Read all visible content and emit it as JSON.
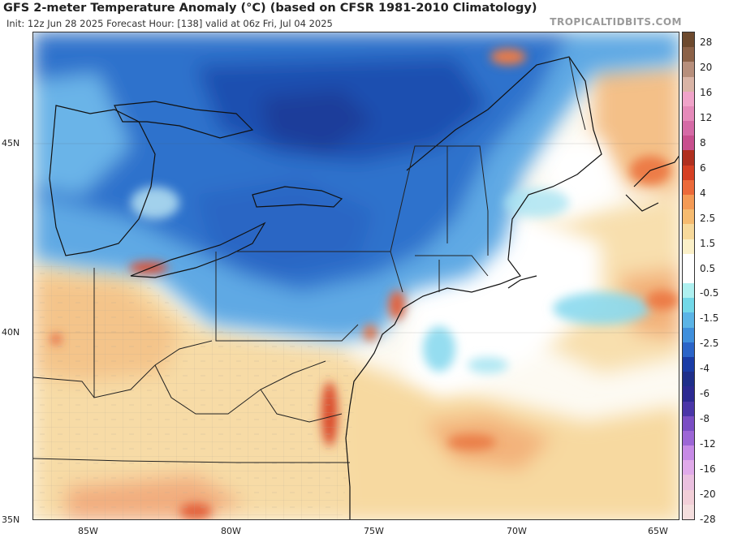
{
  "header": {
    "title": "GFS 2-meter Temperature Anomaly (°C) (based on CFSR 1981-2010 Climatology)",
    "subtitle": "Init: 12z Jun 28 2025   Forecast Hour: [138]   valid at 06z Fri, Jul 04 2025",
    "brand": "TROPICALTIDBITS.COM"
  },
  "axes": {
    "lat_labels": [
      "45N",
      "40N",
      "35N"
    ],
    "lon_labels": [
      "85W",
      "80W",
      "75W",
      "70W",
      "65W"
    ]
  },
  "colorbar": {
    "labels": [
      "28",
      "20",
      "16",
      "12",
      "8",
      "6",
      "4",
      "2.5",
      "1.5",
      "0.5",
      "-0.5",
      "-1.5",
      "-2.5",
      "-4",
      "-6",
      "-8",
      "-12",
      "-16",
      "-20",
      "-28"
    ],
    "colors": [
      "#6e4a2e",
      "#8c6248",
      "#b78f7c",
      "#d9b4a6",
      "#f0a3c9",
      "#e58aba",
      "#d56aa6",
      "#c84f8e",
      "#b03020",
      "#d64024",
      "#ec6a3a",
      "#f49a55",
      "#f6bb70",
      "#f7d99b",
      "#fbf0c8",
      "#ffffff",
      "#ffffff",
      "#aef0f0",
      "#72d8e8",
      "#5bb4e6",
      "#3f8fdc",
      "#2b64c8",
      "#1a3ca6",
      "#1f2f8a",
      "#2c2a92",
      "#4a36a8",
      "#7a4ec4",
      "#9c66d6",
      "#c68ae6",
      "#e0aaea",
      "#eac0e0",
      "#f2cfd8",
      "#f4dede"
    ]
  }
}
